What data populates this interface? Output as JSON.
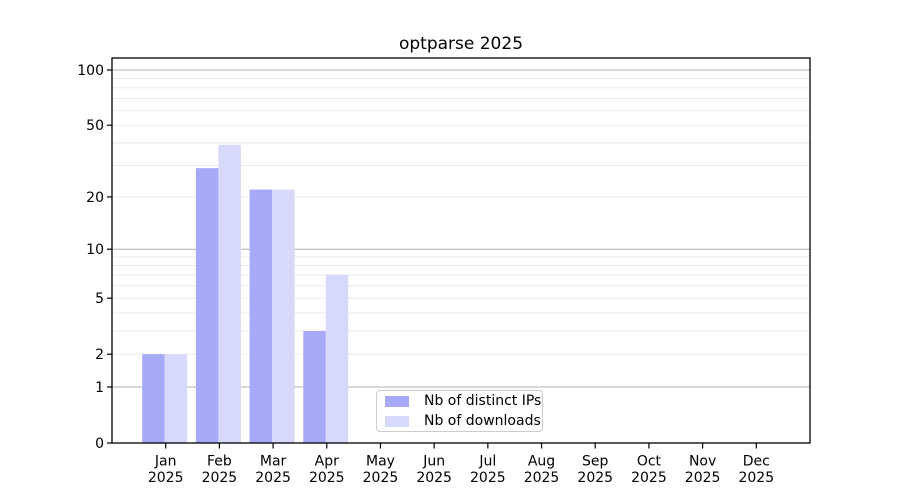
{
  "title": "optparse 2025",
  "colors": {
    "background": "#ffffff",
    "bar_distinct_ips": "#a8a8f8",
    "bar_downloads": "#d8d8fa",
    "grid_major": "#b0b0b0",
    "grid_minor": "#e9e9e9",
    "axis": "#000000",
    "text": "#000000",
    "legend_border": "#cccccc"
  },
  "chart_data": {
    "type": "bar",
    "title": "optparse 2025",
    "categories": [
      "Jan",
      "Feb",
      "Mar",
      "Apr",
      "May",
      "Jun",
      "Jul",
      "Aug",
      "Sep",
      "Oct",
      "Nov",
      "Dec"
    ],
    "category_year": "2025",
    "series": [
      {
        "name": "Nb of distinct IPs",
        "color": "#a8a8f8",
        "values": [
          2,
          29,
          22,
          3,
          0,
          0,
          0,
          0,
          0,
          0,
          0,
          0
        ]
      },
      {
        "name": "Nb of downloads",
        "color": "#d8d8fa",
        "values": [
          2,
          39,
          22,
          7,
          0,
          0,
          0,
          0,
          0,
          0,
          0,
          0
        ]
      }
    ],
    "xlabel": "",
    "ylabel": "",
    "yscale": "log1p",
    "ylim": [
      0,
      116
    ],
    "ytick_labels": [
      0,
      1,
      2,
      5,
      10,
      20,
      50,
      100
    ],
    "major_gridlines": [
      1,
      10,
      100
    ],
    "minor_gridlines": [
      2,
      3,
      4,
      5,
      6,
      7,
      8,
      9,
      20,
      30,
      40,
      50,
      60,
      70,
      80,
      90
    ],
    "grid": true,
    "legend_position": "lower center"
  }
}
